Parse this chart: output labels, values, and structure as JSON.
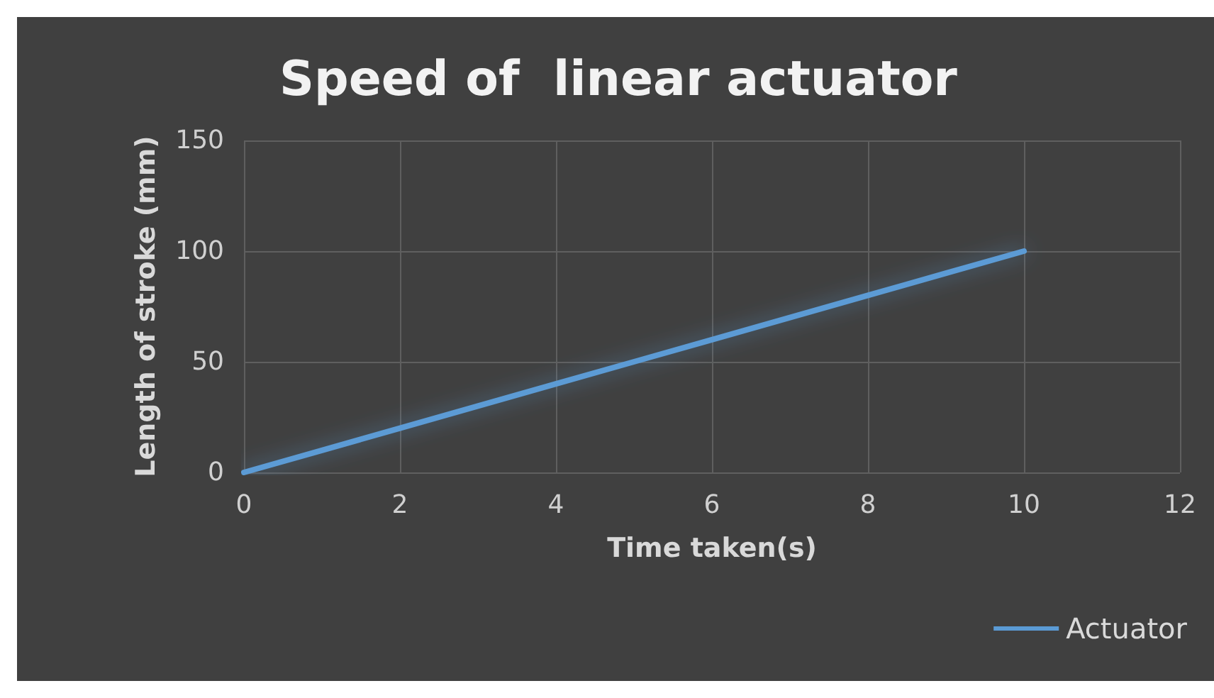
{
  "chart_data": {
    "type": "line",
    "title": "Speed of  linear actuator",
    "xlabel": "Time taken(s)",
    "ylabel": "Length of stroke (mm)",
    "x": [
      0,
      1,
      2,
      3,
      4,
      5,
      6,
      7,
      8,
      9,
      10
    ],
    "series": [
      {
        "name": "Actuator",
        "color": "#5b9bd5",
        "values": [
          0,
          10,
          20,
          30,
          40,
          50,
          60,
          70,
          80,
          90,
          100
        ]
      }
    ],
    "xlim": [
      0,
      12
    ],
    "xticks": [
      0,
      2,
      4,
      6,
      8,
      10,
      12
    ],
    "ylim": [
      0,
      150
    ],
    "yticks": [
      0,
      50,
      100,
      150
    ],
    "grid": true,
    "legend": "bottom right",
    "marker": "none",
    "line_style": "solid"
  }
}
